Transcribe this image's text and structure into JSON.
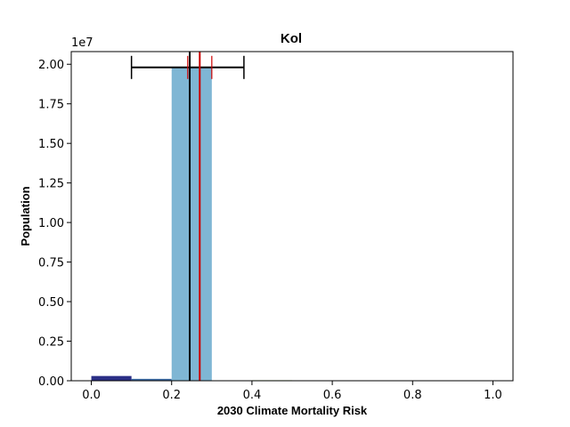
{
  "chart_data": {
    "type": "bar",
    "title": "Kol",
    "xlabel": "2030 Climate Mortality Risk",
    "ylabel": "Population",
    "y_offset_label": "1e7",
    "xlim": [
      -0.05,
      1.05
    ],
    "ylim": [
      0,
      2.08
    ],
    "y_unit_scale": 10000000,
    "x_ticks": [
      0.0,
      0.2,
      0.4,
      0.6,
      0.8,
      1.0
    ],
    "x_tick_labels": [
      "0.0",
      "0.2",
      "0.4",
      "0.6",
      "0.8",
      "1.0"
    ],
    "y_ticks": [
      0.0,
      0.25,
      0.5,
      0.75,
      1.0,
      1.25,
      1.5,
      1.75,
      2.0
    ],
    "y_tick_labels": [
      "0.00",
      "0.25",
      "0.50",
      "0.75",
      "1.00",
      "1.25",
      "1.50",
      "1.75",
      "2.00"
    ],
    "bins": [
      {
        "x0": 0.0,
        "x1": 0.1,
        "value": 0.03,
        "color": "#2b2f86"
      },
      {
        "x0": 0.1,
        "x1": 0.2,
        "value": 0.012,
        "color": "#3c6ba4"
      },
      {
        "x0": 0.2,
        "x1": 0.3,
        "value": 1.98,
        "color": "#7fb6d4"
      },
      {
        "x0": 0.4,
        "x1": 0.5,
        "value": 0.004,
        "color": "#dff2c4"
      }
    ],
    "error_bar": {
      "y": 1.98,
      "x_low": 0.1,
      "x_high": 0.38,
      "color": "#000000"
    },
    "red_interval": {
      "y": 1.98,
      "x_low": 0.24,
      "x_high": 0.3,
      "color": "#cc0000"
    },
    "vlines": [
      {
        "x": 0.245,
        "color": "#000000"
      },
      {
        "x": 0.27,
        "color": "#cc0000"
      }
    ],
    "grid": false
  }
}
